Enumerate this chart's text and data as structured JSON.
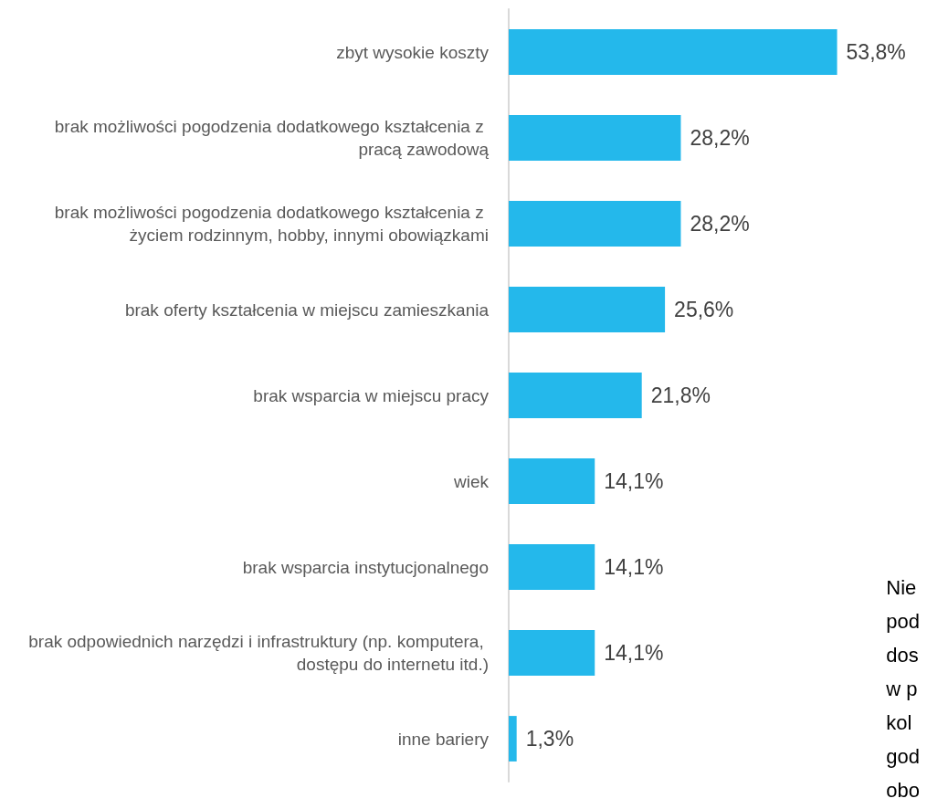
{
  "chart_data": {
    "type": "bar",
    "orientation": "horizontal",
    "categories": [
      "zbyt wysokie koszty",
      "brak możliwości pogodzenia dodatkowego kształcenia z pracą zawodową",
      "brak możliwości pogodzenia dodatkowego kształcenia z życiem rodzinnym, hobby, innymi obowiązkami",
      "brak oferty kształcenia w miejscu zamieszkania",
      "brak wsparcia w miejscu pracy",
      "wiek",
      "brak wsparcia instytucjonalnego",
      "brak odpowiednich narzędzi i infrastruktury (np. komputera, dostępu do internetu itd.)",
      "inne bariery"
    ],
    "values": [
      53.8,
      28.2,
      28.2,
      25.6,
      21.8,
      14.1,
      14.1,
      14.1,
      1.3
    ],
    "value_labels": [
      "53,8%",
      "28,2%",
      "28,2%",
      "25,6%",
      "21,8%",
      "14,1%",
      "14,1%",
      "14,1%",
      "1,3%"
    ],
    "color": "#24b8eb",
    "annotations": [
      "Nie\npod\ndos\nw p\nkol\ngod\nobo"
    ]
  }
}
